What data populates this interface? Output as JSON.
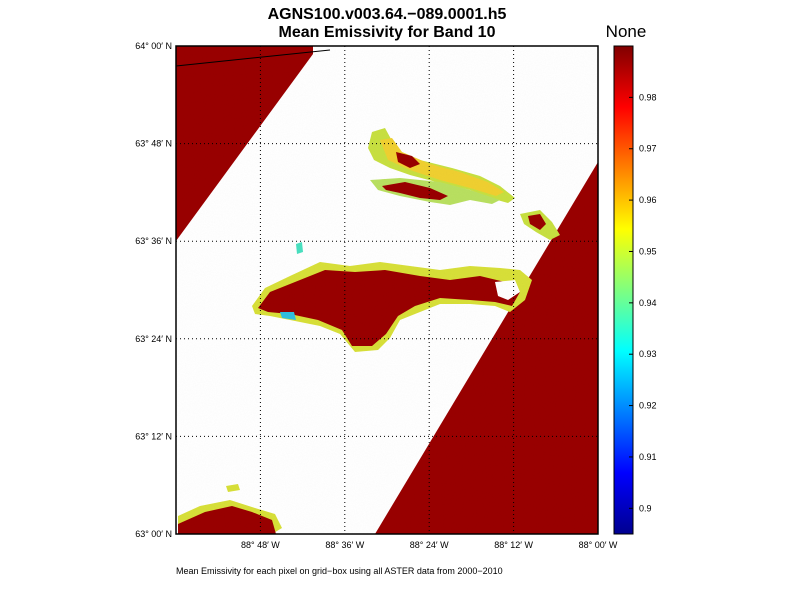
{
  "chart": {
    "title_line1": "AGNS100.v003.64.−089.0001.h5",
    "title_line2": "Mean Emissivity for Band 10",
    "colorbar_title": "None",
    "footnote": "Mean Emissivity for each pixel on grid−box using all ASTER data from 2000−2010"
  },
  "chart_data": {
    "type": "heatmap",
    "title": "AGNS100.v003.64.−089.0001.h5 — Mean Emissivity for Band 10",
    "variable": "Mean Emissivity",
    "colormap": "jet",
    "grid": true,
    "colorbar": {
      "position": "right",
      "title": "None",
      "range": [
        0.895,
        0.99
      ],
      "ticks": [
        {
          "value": 0.9,
          "label": "0.9"
        },
        {
          "value": 0.91,
          "label": "0.91"
        },
        {
          "value": 0.92,
          "label": "0.92"
        },
        {
          "value": 0.93,
          "label": "0.93"
        },
        {
          "value": 0.94,
          "label": "0.94"
        },
        {
          "value": 0.95,
          "label": "0.95"
        },
        {
          "value": 0.96,
          "label": "0.96"
        },
        {
          "value": 0.97,
          "label": "0.97"
        },
        {
          "value": 0.98,
          "label": "0.98"
        }
      ]
    },
    "lat_ticks": [
      {
        "value": 64.0,
        "label": "64° 00′ N"
      },
      {
        "value": 63.8,
        "label": "63° 48′ N"
      },
      {
        "value": 63.6,
        "label": "63° 36′ N"
      },
      {
        "value": 63.4,
        "label": "63° 24′ N"
      },
      {
        "value": 63.2,
        "label": "63° 12′ N"
      },
      {
        "value": 63.0,
        "label": "63° 00′ N"
      }
    ],
    "lon_ticks": [
      {
        "value": -88.8,
        "label": "88° 48′ W"
      },
      {
        "value": -88.6,
        "label": "88° 36′ W"
      },
      {
        "value": -88.4,
        "label": "88° 24′ W"
      },
      {
        "value": -88.2,
        "label": "88° 12′ W"
      },
      {
        "value": -88.0,
        "label": "88° 00′ W"
      }
    ],
    "lat_range": [
      63.0,
      64.0
    ],
    "lon_range": [
      -89.0,
      -88.0
    ],
    "dominant_value": 0.99,
    "no_data_color": "#ffffff"
  }
}
